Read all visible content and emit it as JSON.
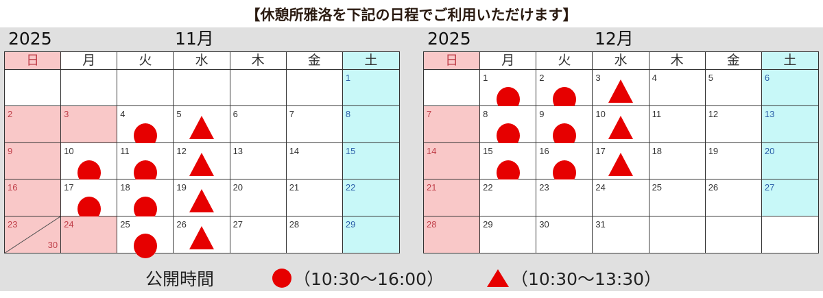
{
  "title": "【休憩所雅洛を下記の日程でご利用いただけます】",
  "weekdays": [
    "日",
    "月",
    "火",
    "水",
    "木",
    "金",
    "土"
  ],
  "colors": {
    "mark": "#e60000",
    "holiday": "#f9c8c8",
    "saturday": "#c8f8f8"
  },
  "calendars": [
    {
      "year": "2025",
      "month": "11月",
      "weeks": [
        [
          {},
          {},
          {},
          {},
          {},
          {},
          {
            "day": "1",
            "type": "sat"
          }
        ],
        [
          {
            "day": "2",
            "type": "hol"
          },
          {
            "day": "3",
            "type": "hol"
          },
          {
            "day": "4",
            "mark": "circle"
          },
          {
            "day": "5",
            "mark": "triangle"
          },
          {
            "day": "6"
          },
          {
            "day": "7"
          },
          {
            "day": "8",
            "type": "sat"
          }
        ],
        [
          {
            "day": "9",
            "type": "hol"
          },
          {
            "day": "10",
            "mark": "circle"
          },
          {
            "day": "11",
            "mark": "circle"
          },
          {
            "day": "12",
            "mark": "triangle"
          },
          {
            "day": "13"
          },
          {
            "day": "14"
          },
          {
            "day": "15",
            "type": "sat"
          }
        ],
        [
          {
            "day": "16",
            "type": "hol"
          },
          {
            "day": "17",
            "mark": "circle"
          },
          {
            "day": "18",
            "mark": "circle"
          },
          {
            "day": "19",
            "mark": "triangle"
          },
          {
            "day": "20"
          },
          {
            "day": "21"
          },
          {
            "day": "22",
            "type": "sat"
          }
        ],
        [
          {
            "day": "23",
            "day2": "30",
            "type": "hol"
          },
          {
            "day": "24",
            "type": "hol"
          },
          {
            "day": "25",
            "mark": "circle"
          },
          {
            "day": "26",
            "mark": "triangle"
          },
          {
            "day": "27"
          },
          {
            "day": "28"
          },
          {
            "day": "29",
            "type": "sat"
          }
        ]
      ]
    },
    {
      "year": "2025",
      "month": "12月",
      "weeks": [
        [
          {},
          {
            "day": "1",
            "mark": "circle"
          },
          {
            "day": "2",
            "mark": "circle"
          },
          {
            "day": "3",
            "mark": "triangle"
          },
          {
            "day": "4"
          },
          {
            "day": "5"
          },
          {
            "day": "6",
            "type": "sat"
          }
        ],
        [
          {
            "day": "7",
            "type": "hol"
          },
          {
            "day": "8",
            "mark": "circle"
          },
          {
            "day": "9",
            "mark": "circle"
          },
          {
            "day": "10",
            "mark": "triangle"
          },
          {
            "day": "11"
          },
          {
            "day": "12"
          },
          {
            "day": "13",
            "type": "sat"
          }
        ],
        [
          {
            "day": "14",
            "type": "hol"
          },
          {
            "day": "15",
            "mark": "circle"
          },
          {
            "day": "16",
            "mark": "circle"
          },
          {
            "day": "17",
            "mark": "triangle"
          },
          {
            "day": "18"
          },
          {
            "day": "19"
          },
          {
            "day": "20",
            "type": "sat"
          }
        ],
        [
          {
            "day": "21",
            "type": "hol"
          },
          {
            "day": "22"
          },
          {
            "day": "23"
          },
          {
            "day": "24"
          },
          {
            "day": "25"
          },
          {
            "day": "26"
          },
          {
            "day": "27",
            "type": "sat"
          }
        ],
        [
          {
            "day": "28",
            "type": "hol"
          },
          {
            "day": "29"
          },
          {
            "day": "30"
          },
          {
            "day": "31"
          },
          {},
          {},
          {}
        ]
      ]
    }
  ],
  "legend": {
    "label": "公開時間",
    "circle_hours": "（10:30〜16:00）",
    "triangle_hours": "（10:30〜13:30）"
  }
}
